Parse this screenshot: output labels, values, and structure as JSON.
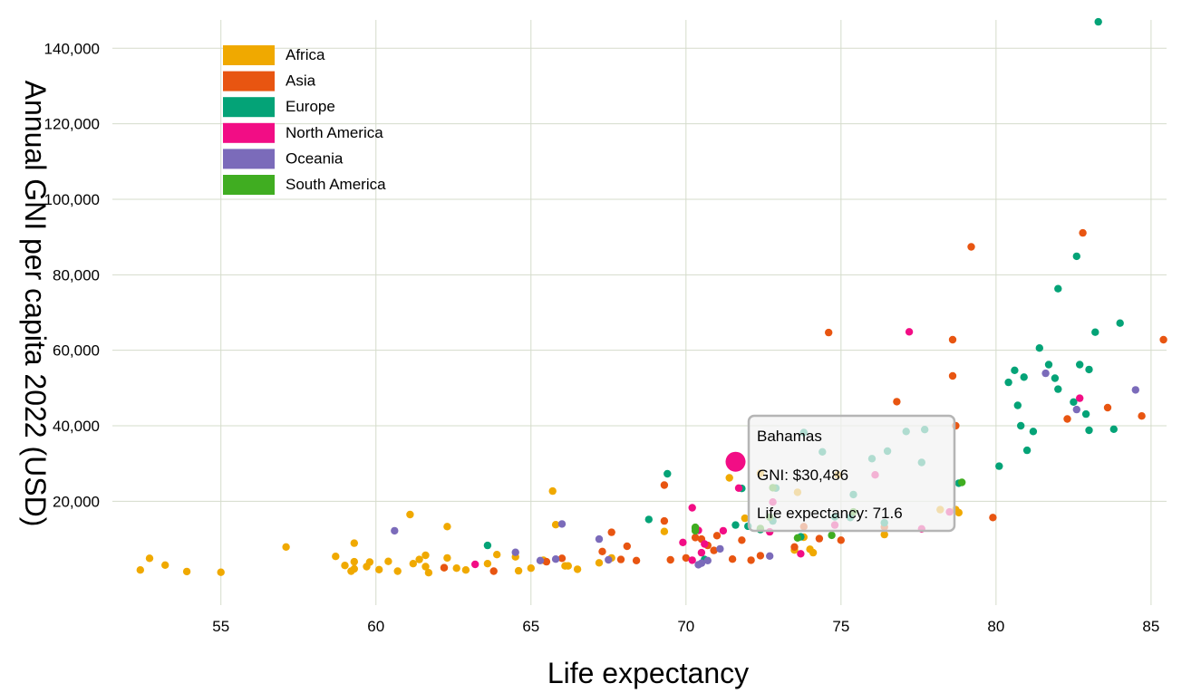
{
  "chart_data": {
    "type": "scatter",
    "title": "",
    "xlabel": "Life expectancy",
    "ylabel": "Annual GNI per capita 2022 (USD)",
    "xlim": [
      51.5,
      85.5
    ],
    "ylim": [
      -7500,
      147500
    ],
    "x_ticks": [
      {
        "value": 55,
        "label": "55"
      },
      {
        "value": 60,
        "label": "60"
      },
      {
        "value": 65,
        "label": "65"
      },
      {
        "value": 70,
        "label": "70"
      },
      {
        "value": 75,
        "label": "75"
      },
      {
        "value": 80,
        "label": "80"
      },
      {
        "value": 85,
        "label": "85"
      }
    ],
    "y_ticks": [
      {
        "value": 20000,
        "label": "20,000"
      },
      {
        "value": 40000,
        "label": "40,000"
      },
      {
        "value": 60000,
        "label": "60,000"
      },
      {
        "value": 80000,
        "label": "80,000"
      },
      {
        "value": 100000,
        "label": "100,000"
      },
      {
        "value": 120000,
        "label": "120,000"
      },
      {
        "value": 140000,
        "label": "140,000"
      }
    ],
    "grid": true,
    "legend_position": "top-left",
    "series": [
      {
        "name": "Africa",
        "color": "#f0a900",
        "points": [
          [
            52.4,
            1800
          ],
          [
            52.7,
            4900
          ],
          [
            53.2,
            3100
          ],
          [
            53.9,
            1400
          ],
          [
            55.0,
            1200
          ],
          [
            57.1,
            7900
          ],
          [
            58.7,
            5400
          ],
          [
            59.0,
            3000
          ],
          [
            59.2,
            1500
          ],
          [
            59.3,
            2100
          ],
          [
            59.3,
            4000
          ],
          [
            59.3,
            8900
          ],
          [
            59.7,
            2700
          ],
          [
            59.8,
            3900
          ],
          [
            60.1,
            1900
          ],
          [
            60.4,
            4100
          ],
          [
            60.7,
            1500
          ],
          [
            61.1,
            16500
          ],
          [
            61.2,
            3500
          ],
          [
            61.4,
            4600
          ],
          [
            61.6,
            2700
          ],
          [
            61.6,
            5700
          ],
          [
            61.7,
            1100
          ],
          [
            62.2,
            2400
          ],
          [
            62.3,
            13300
          ],
          [
            62.3,
            5000
          ],
          [
            62.6,
            2300
          ],
          [
            62.9,
            1800
          ],
          [
            63.6,
            3500
          ],
          [
            63.9,
            5900
          ],
          [
            64.5,
            5300
          ],
          [
            64.6,
            1600
          ],
          [
            65.0,
            2300
          ],
          [
            65.4,
            4400
          ],
          [
            65.7,
            22700
          ],
          [
            65.8,
            13800
          ],
          [
            66.1,
            2900
          ],
          [
            66.2,
            2900
          ],
          [
            66.5,
            2000
          ],
          [
            67.2,
            3700
          ],
          [
            67.6,
            5000
          ],
          [
            69.3,
            12000
          ],
          [
            71.4,
            26200
          ],
          [
            71.9,
            15500
          ],
          [
            72.4,
            27400
          ],
          [
            73.5,
            7100
          ],
          [
            73.6,
            22400
          ],
          [
            73.8,
            10500
          ],
          [
            74.0,
            7300
          ],
          [
            74.1,
            6400
          ],
          [
            74.9,
            27000
          ],
          [
            76.4,
            11200
          ],
          [
            78.2,
            17800
          ],
          [
            78.7,
            17800
          ],
          [
            78.8,
            17000
          ]
        ]
      },
      {
        "name": "Asia",
        "color": "#e85511",
        "points": [
          [
            62.2,
            2400
          ],
          [
            63.8,
            1500
          ],
          [
            65.5,
            4000
          ],
          [
            66.0,
            4900
          ],
          [
            67.3,
            6700
          ],
          [
            67.6,
            11800
          ],
          [
            67.9,
            4600
          ],
          [
            68.1,
            8100
          ],
          [
            68.4,
            4300
          ],
          [
            69.3,
            14800
          ],
          [
            69.3,
            24300
          ],
          [
            69.5,
            4500
          ],
          [
            70.0,
            5000
          ],
          [
            70.3,
            10400
          ],
          [
            70.5,
            10000
          ],
          [
            70.7,
            8300
          ],
          [
            70.9,
            7000
          ],
          [
            71.0,
            10900
          ],
          [
            71.5,
            4700
          ],
          [
            71.8,
            9700
          ],
          [
            72.1,
            4400
          ],
          [
            72.4,
            5600
          ],
          [
            73.5,
            7900
          ],
          [
            73.8,
            13300
          ],
          [
            74.3,
            10100
          ],
          [
            74.6,
            64700
          ],
          [
            75.0,
            9700
          ],
          [
            76.4,
            13200
          ],
          [
            76.8,
            46400
          ],
          [
            78.6,
            62800
          ],
          [
            78.6,
            53200
          ],
          [
            78.7,
            40000
          ],
          [
            79.2,
            87400
          ],
          [
            79.9,
            15700
          ],
          [
            82.3,
            41800
          ],
          [
            82.8,
            91100
          ],
          [
            83.6,
            44800
          ],
          [
            84.7,
            42600
          ],
          [
            85.4,
            62800
          ]
        ]
      },
      {
        "name": "Europe",
        "color": "#04a377",
        "points": [
          [
            63.6,
            8300
          ],
          [
            68.8,
            15200
          ],
          [
            69.4,
            27300
          ],
          [
            70.3,
            12800
          ],
          [
            70.6,
            4600
          ],
          [
            71.6,
            13700
          ],
          [
            71.8,
            23400
          ],
          [
            72.0,
            13400
          ],
          [
            72.4,
            12500
          ],
          [
            72.8,
            14800
          ],
          [
            72.9,
            23500
          ],
          [
            73.7,
            10600
          ],
          [
            73.8,
            38200
          ],
          [
            74.4,
            33100
          ],
          [
            74.8,
            15900
          ],
          [
            75.3,
            15700
          ],
          [
            75.4,
            21800
          ],
          [
            76.0,
            31300
          ],
          [
            76.4,
            14300
          ],
          [
            76.5,
            33300
          ],
          [
            77.1,
            38500
          ],
          [
            77.6,
            30300
          ],
          [
            77.7,
            39000
          ],
          [
            78.8,
            24800
          ],
          [
            80.1,
            29300
          ],
          [
            80.4,
            51500
          ],
          [
            80.6,
            54700
          ],
          [
            80.7,
            45400
          ],
          [
            80.8,
            40000
          ],
          [
            80.9,
            52900
          ],
          [
            81.0,
            33500
          ],
          [
            81.2,
            38500
          ],
          [
            81.4,
            60600
          ],
          [
            81.7,
            56200
          ],
          [
            81.9,
            52600
          ],
          [
            82.0,
            49700
          ],
          [
            82.0,
            76300
          ],
          [
            82.5,
            46300
          ],
          [
            82.6,
            84900
          ],
          [
            82.7,
            56200
          ],
          [
            82.9,
            43100
          ],
          [
            83.0,
            38800
          ],
          [
            83.0,
            54900
          ],
          [
            83.2,
            64800
          ],
          [
            83.3,
            147000
          ],
          [
            83.8,
            39100
          ],
          [
            84.0,
            67200
          ]
        ]
      },
      {
        "name": "North America",
        "color": "#f20d85",
        "points": [
          [
            63.2,
            3300
          ],
          [
            69.9,
            9100
          ],
          [
            70.2,
            18300
          ],
          [
            70.2,
            4400
          ],
          [
            70.4,
            12300
          ],
          [
            70.5,
            6400
          ],
          [
            70.6,
            8700
          ],
          [
            71.2,
            12200
          ],
          [
            71.6,
            30486
          ],
          [
            71.7,
            23500
          ],
          [
            72.7,
            11900
          ],
          [
            72.8,
            19800
          ],
          [
            73.7,
            6100
          ],
          [
            74.8,
            13700
          ],
          [
            76.1,
            27000
          ],
          [
            77.2,
            64900
          ],
          [
            77.6,
            12700
          ],
          [
            78.5,
            17200
          ],
          [
            82.7,
            47300
          ]
        ]
      },
      {
        "name": "Oceania",
        "color": "#7b6bba",
        "points": [
          [
            60.6,
            12200
          ],
          [
            64.5,
            6500
          ],
          [
            65.3,
            4300
          ],
          [
            65.8,
            4700
          ],
          [
            66.0,
            14000
          ],
          [
            67.2,
            10000
          ],
          [
            67.5,
            4500
          ],
          [
            70.4,
            3200
          ],
          [
            70.5,
            3600
          ],
          [
            70.7,
            4300
          ],
          [
            71.1,
            7400
          ],
          [
            72.7,
            5500
          ],
          [
            81.6,
            53900
          ],
          [
            82.6,
            44300
          ],
          [
            84.5,
            49500
          ]
        ]
      },
      {
        "name": "South America",
        "color": "#40ad21",
        "points": [
          [
            70.3,
            13100
          ],
          [
            72.4,
            12800
          ],
          [
            73.6,
            10300
          ],
          [
            72.8,
            23600
          ],
          [
            74.7,
            11000
          ],
          [
            75.4,
            17200
          ],
          [
            78.9,
            25000
          ],
          [
            72.7,
            15800
          ],
          [
            70.3,
            12200
          ]
        ]
      }
    ]
  },
  "tooltip": {
    "country": "Bahamas",
    "gni": "GNI: $30,486",
    "life_expectancy": "Life expectancy: 71.6",
    "x": 71.6,
    "y": 30486,
    "series": "North America"
  }
}
